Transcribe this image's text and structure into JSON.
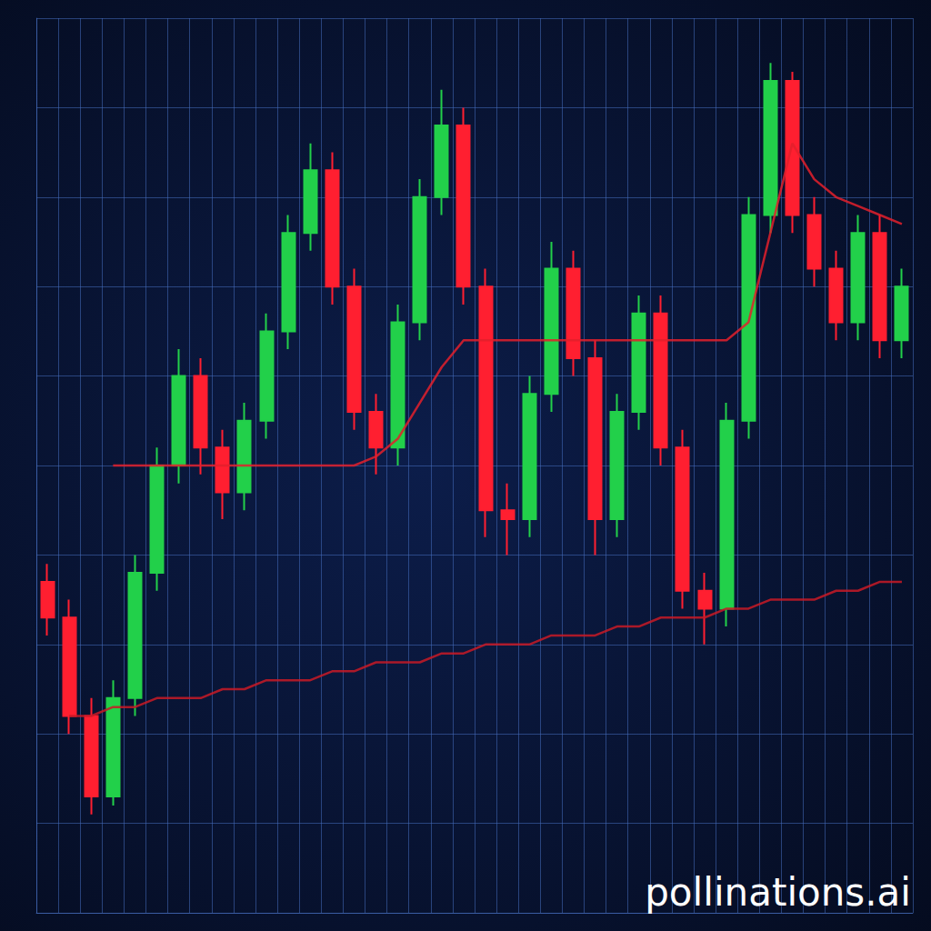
{
  "chart_data": {
    "type": "candlestick",
    "categories": [
      null,
      null,
      null,
      null,
      null,
      null,
      null,
      null,
      null,
      null,
      null,
      null,
      null,
      null,
      null,
      null,
      null,
      null,
      null,
      null,
      null,
      null,
      null,
      null,
      null,
      null,
      null,
      null,
      null,
      null,
      null,
      null,
      null,
      null,
      null,
      null,
      null,
      null,
      null,
      null
    ],
    "series": [
      {
        "type": "candlestick",
        "values": [
          [
            37,
            33,
            31,
            39
          ],
          [
            33,
            22,
            20,
            35
          ],
          [
            22,
            13,
            11,
            24
          ],
          [
            13,
            24,
            12,
            26
          ],
          [
            24,
            38,
            22,
            40
          ],
          [
            38,
            50,
            36,
            52
          ],
          [
            50,
            60,
            48,
            63
          ],
          [
            60,
            52,
            49,
            62
          ],
          [
            52,
            47,
            44,
            54
          ],
          [
            47,
            55,
            45,
            57
          ],
          [
            55,
            65,
            53,
            67
          ],
          [
            65,
            76,
            63,
            78
          ],
          [
            76,
            83,
            74,
            86
          ],
          [
            83,
            70,
            68,
            85
          ],
          [
            70,
            56,
            54,
            72
          ],
          [
            56,
            52,
            49,
            58
          ],
          [
            52,
            66,
            50,
            68
          ],
          [
            66,
            80,
            64,
            82
          ],
          [
            80,
            88,
            78,
            92
          ],
          [
            88,
            70,
            68,
            90
          ],
          [
            70,
            45,
            42,
            72
          ],
          [
            45,
            44,
            40,
            48
          ],
          [
            44,
            58,
            42,
            60
          ],
          [
            58,
            72,
            56,
            75
          ],
          [
            72,
            62,
            60,
            74
          ],
          [
            62,
            44,
            40,
            64
          ],
          [
            44,
            56,
            42,
            58
          ],
          [
            56,
            67,
            54,
            69
          ],
          [
            67,
            52,
            50,
            69
          ],
          [
            52,
            36,
            34,
            54
          ],
          [
            36,
            34,
            30,
            38
          ],
          [
            34,
            55,
            32,
            57
          ],
          [
            55,
            78,
            53,
            80
          ],
          [
            78,
            93,
            76,
            95
          ],
          [
            93,
            78,
            76,
            94
          ],
          [
            78,
            72,
            70,
            80
          ],
          [
            72,
            66,
            64,
            74
          ],
          [
            66,
            76,
            64,
            78
          ],
          [
            76,
            64,
            62,
            78
          ],
          [
            64,
            70,
            62,
            72
          ]
        ]
      },
      {
        "type": "line",
        "color": "#e3202c",
        "values": [
          null,
          null,
          null,
          50,
          50,
          50,
          50,
          50,
          50,
          50,
          50,
          50,
          50,
          50,
          50,
          51,
          53,
          57,
          61,
          64,
          64,
          64,
          64,
          64,
          64,
          64,
          64,
          64,
          64,
          64,
          64,
          64,
          66,
          76,
          86,
          82,
          80,
          79,
          78,
          77
        ]
      },
      {
        "type": "line",
        "color": "#c81a26",
        "values": [
          null,
          22,
          22,
          23,
          23,
          24,
          24,
          24,
          25,
          25,
          26,
          26,
          26,
          27,
          27,
          28,
          28,
          28,
          29,
          29,
          30,
          30,
          30,
          31,
          31,
          31,
          32,
          32,
          33,
          33,
          33,
          34,
          34,
          35,
          35,
          35,
          36,
          36,
          37,
          37
        ]
      }
    ],
    "ylim": [
      0,
      100
    ],
    "yticks": [
      0,
      10,
      20,
      30,
      40,
      50,
      60,
      70,
      80,
      90,
      100
    ],
    "grid": true,
    "tick_labels": false,
    "annotation": "pollinations.ai"
  }
}
